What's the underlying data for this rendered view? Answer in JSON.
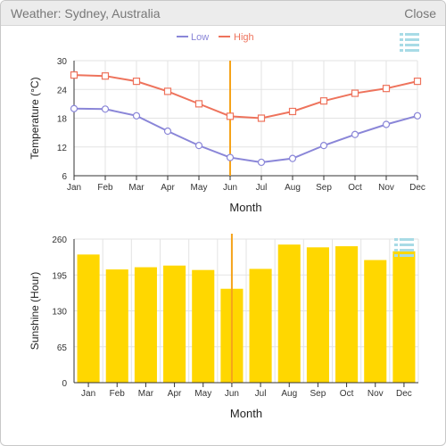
{
  "window": {
    "title": "Weather: Sydney, Australia",
    "close_label": "Close"
  },
  "colors": {
    "low": "#8a86d8",
    "high": "#ee735c",
    "bar": "#ffd700",
    "crosshair": "#f5a31a",
    "grid": "#e3e3e3",
    "axis": "#333333",
    "icon": "#a8dbe6"
  },
  "icons": {
    "menu": "hamburger-menu-icon"
  },
  "chart_data": [
    {
      "type": "line",
      "categories": [
        "Jan",
        "Feb",
        "Mar",
        "Apr",
        "May",
        "Jun",
        "Jul",
        "Aug",
        "Sep",
        "Oct",
        "Nov",
        "Dec"
      ],
      "series": [
        {
          "name": "Low",
          "values": [
            20.0,
            19.9,
            18.5,
            15.3,
            12.3,
            9.8,
            8.8,
            9.6,
            12.3,
            14.6,
            16.7,
            18.5
          ]
        },
        {
          "name": "High",
          "values": [
            27.0,
            26.8,
            25.7,
            23.6,
            21.0,
            18.4,
            18.0,
            19.4,
            21.6,
            23.2,
            24.2,
            25.7
          ]
        }
      ],
      "xlabel": "Month",
      "ylabel": "Temperature (°C)",
      "ylim": [
        6,
        30
      ],
      "yticks": [
        6,
        12,
        18,
        24,
        30
      ],
      "grid": true,
      "legend": "top-center",
      "highlight_category": "Jun"
    },
    {
      "type": "bar",
      "categories": [
        "Jan",
        "Feb",
        "Mar",
        "Apr",
        "May",
        "Jun",
        "Jul",
        "Aug",
        "Sep",
        "Oct",
        "Nov",
        "Dec"
      ],
      "values": [
        232,
        205,
        209,
        212,
        204,
        170,
        206,
        250,
        245,
        247,
        222,
        238
      ],
      "xlabel": "Month",
      "ylabel": "Sunshine (Hour)",
      "ylim": [
        0,
        260
      ],
      "yticks": [
        0,
        65,
        130,
        195,
        260
      ],
      "grid": true,
      "highlight_category": "Jun"
    }
  ]
}
